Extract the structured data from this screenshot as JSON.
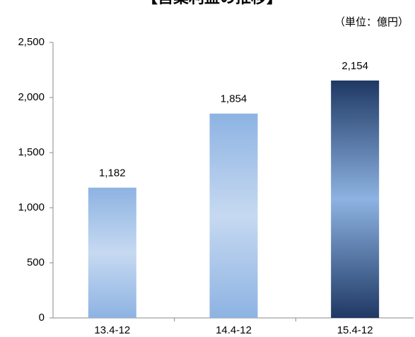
{
  "chart_data": {
    "type": "bar",
    "title": "【営業利益の推移】",
    "subtitle": "（単位：億円）",
    "categories": [
      "13.4-12",
      "14.4-12",
      "15.4-12"
    ],
    "values": [
      1182,
      1854,
      2154
    ],
    "value_labels": [
      "1,182",
      "1,854",
      "2,154"
    ],
    "colors": [
      [
        "#8db3e2",
        "#c6d9f1"
      ],
      [
        "#8db3e2",
        "#c6d9f1"
      ],
      [
        "#1f3864",
        "#8db3e2"
      ]
    ],
    "ylim": [
      0,
      2500
    ],
    "yticks": [
      0,
      500,
      {
        "value": 1000,
        "label": "1,000"
      },
      {
        "value": 1500,
        "label": "1,500"
      },
      {
        "value": 2000,
        "label": "2,000"
      },
      {
        "value": 2500,
        "label": "2,500"
      }
    ],
    "grid": false
  }
}
